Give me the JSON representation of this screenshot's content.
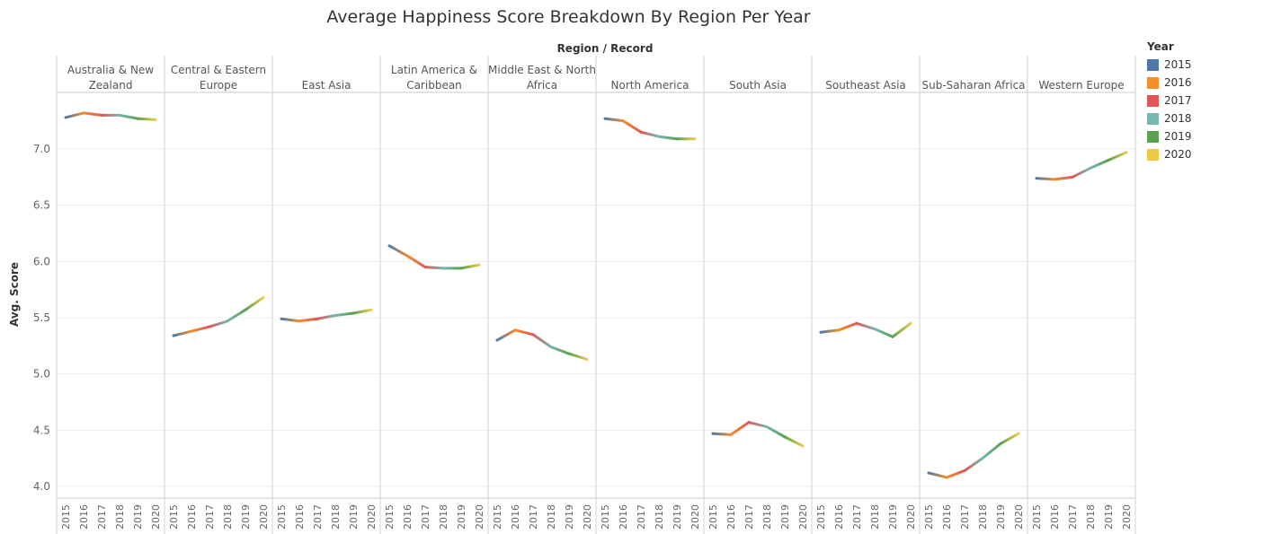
{
  "chart_data": {
    "type": "line",
    "title": "Average Happiness Score Breakdown By Region Per Year",
    "column_header": "Region  /  Record",
    "ylabel": "Avg. Score",
    "ylim": [
      3.9,
      7.45
    ],
    "yticks": [
      "4.0",
      "4.5",
      "5.0",
      "5.5",
      "6.0",
      "6.5",
      "7.0"
    ],
    "x": [
      "2015",
      "2016",
      "2017",
      "2018",
      "2019",
      "2020"
    ],
    "grid": true,
    "legend_title": "Year",
    "legend_placement": "right",
    "legend": [
      {
        "label": "2015",
        "color": "#4e79a7"
      },
      {
        "label": "2016",
        "color": "#f28e2b"
      },
      {
        "label": "2017",
        "color": "#e15759"
      },
      {
        "label": "2018",
        "color": "#76b7b2"
      },
      {
        "label": "2019",
        "color": "#59a14f"
      },
      {
        "label": "2020",
        "color": "#edc948"
      }
    ],
    "series": [
      {
        "name": "Australia & New Zealand",
        "values": [
          7.28,
          7.32,
          7.3,
          7.3,
          7.27,
          7.26
        ]
      },
      {
        "name": "Central & Eastern Europe",
        "values": [
          5.34,
          5.38,
          5.42,
          5.47,
          5.57,
          5.68
        ]
      },
      {
        "name": "East Asia",
        "values": [
          5.49,
          5.47,
          5.49,
          5.52,
          5.54,
          5.57
        ]
      },
      {
        "name": "Latin America & Caribbean",
        "values": [
          6.14,
          6.05,
          5.95,
          5.94,
          5.94,
          5.97
        ]
      },
      {
        "name": "Middle East & North Africa",
        "values": [
          5.3,
          5.39,
          5.35,
          5.24,
          5.18,
          5.13
        ]
      },
      {
        "name": "North America",
        "values": [
          7.27,
          7.25,
          7.15,
          7.11,
          7.09,
          7.09
        ]
      },
      {
        "name": "South Asia",
        "values": [
          4.47,
          4.46,
          4.57,
          4.53,
          4.44,
          4.36
        ]
      },
      {
        "name": "Southeast Asia",
        "values": [
          5.37,
          5.39,
          5.45,
          5.4,
          5.33,
          5.45
        ]
      },
      {
        "name": "Sub-Saharan Africa",
        "values": [
          4.12,
          4.08,
          4.14,
          4.25,
          4.38,
          4.47
        ]
      },
      {
        "name": "Western Europe",
        "values": [
          6.74,
          6.73,
          6.75,
          6.83,
          6.9,
          6.97
        ]
      }
    ],
    "panel_headers": [
      [
        "Australia & New",
        "Zealand"
      ],
      [
        "Central & Eastern",
        "Europe"
      ],
      [
        "",
        "East Asia"
      ],
      [
        "Latin America &",
        "Caribbean"
      ],
      [
        "Middle East & North",
        "Africa"
      ],
      [
        "",
        "North America"
      ],
      [
        "",
        "South Asia"
      ],
      [
        "",
        "Southeast Asia"
      ],
      [
        "",
        "Sub-Saharan Africa"
      ],
      [
        "",
        "Western Europe"
      ]
    ]
  }
}
